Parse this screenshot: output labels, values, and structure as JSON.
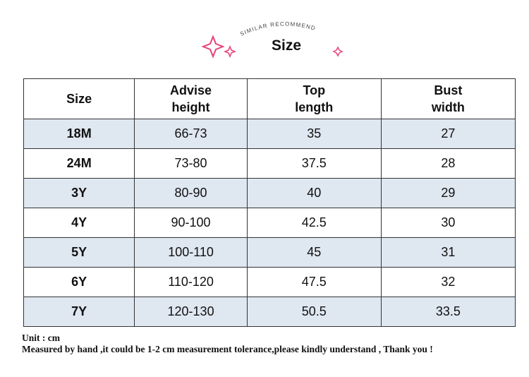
{
  "header": {
    "arc_text": "SIMILAR RECOMMEND",
    "title": "Size"
  },
  "table": {
    "columns": [
      "Size",
      "Advise height",
      "Top length",
      "Bust width"
    ],
    "rows": [
      [
        "18M",
        "66-73",
        "35",
        "27"
      ],
      [
        "24M",
        "73-80",
        "37.5",
        "28"
      ],
      [
        "3Y",
        "80-90",
        "40",
        "29"
      ],
      [
        "4Y",
        "90-100",
        "42.5",
        "30"
      ],
      [
        "5Y",
        "100-110",
        "45",
        "31"
      ],
      [
        "6Y",
        "110-120",
        "47.5",
        "32"
      ],
      [
        "7Y",
        "120-130",
        "50.5",
        "33.5"
      ]
    ]
  },
  "notes": [
    "Unit : cm",
    "Measured by hand ,it could be 1-2 cm measurement tolerance,please kindly understand , Thank you !"
  ]
}
